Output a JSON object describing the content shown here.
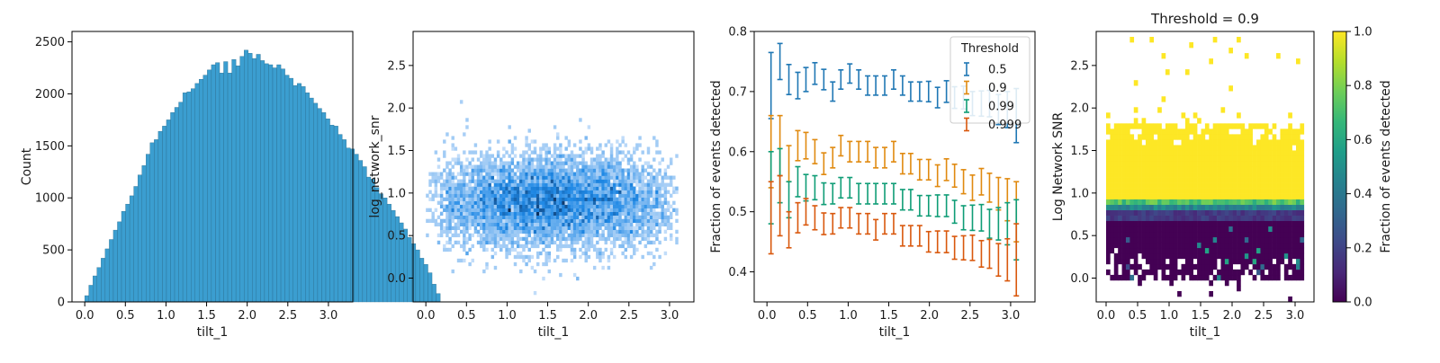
{
  "chart_data": [
    {
      "id": "hist",
      "type": "bar",
      "xlabel": "tilt_1",
      "ylabel": "Count",
      "xlim": [
        -0.157,
        3.3
      ],
      "ylim": [
        0,
        2600
      ],
      "xticks": [
        0.0,
        0.5,
        1.0,
        1.5,
        2.0,
        2.5,
        3.0
      ],
      "xtick_labels": [
        "0.0",
        "0.5",
        "1.0",
        "1.5",
        "2.0",
        "2.5",
        "3.0"
      ],
      "yticks": [
        0,
        500,
        1000,
        1500,
        2000,
        2500
      ],
      "ytick_labels": [
        "0",
        "500",
        "1000",
        "1500",
        "2000",
        "2500"
      ],
      "bin_width": 0.0503,
      "bin_start": 0.0,
      "values": [
        60,
        160,
        250,
        330,
        420,
        510,
        600,
        690,
        770,
        870,
        940,
        1020,
        1110,
        1220,
        1310,
        1420,
        1530,
        1560,
        1640,
        1690,
        1750,
        1820,
        1870,
        1920,
        2010,
        2020,
        2050,
        2100,
        2140,
        2180,
        2230,
        2280,
        2300,
        2200,
        2310,
        2200,
        2330,
        2270,
        2360,
        2420,
        2390,
        2340,
        2380,
        2320,
        2290,
        2280,
        2250,
        2280,
        2240,
        2180,
        2150,
        2080,
        2100,
        2070,
        2010,
        1960,
        1910,
        1860,
        1820,
        1760,
        1700,
        1690,
        1610,
        1560,
        1480,
        1470,
        1420,
        1360,
        1300,
        1200,
        1180,
        1100,
        1040,
        1000,
        940,
        880,
        820,
        760,
        700,
        620,
        560,
        500,
        420,
        360,
        280,
        170,
        80
      ],
      "color": "#3b9ed0"
    },
    {
      "id": "density",
      "type": "heatmap",
      "xlabel": "tilt_1",
      "ylabel": "log_network_snr",
      "xlim": [
        -0.157,
        3.3
      ],
      "ylim": [
        -0.28,
        2.9
      ],
      "xticks": [
        0.0,
        0.5,
        1.0,
        1.5,
        2.0,
        2.5,
        3.0
      ],
      "xtick_labels": [
        "0.0",
        "0.5",
        "1.0",
        "1.5",
        "2.0",
        "2.5",
        "3.0"
      ],
      "yticks": [
        0.0,
        0.5,
        1.0,
        1.5,
        2.0,
        2.5
      ],
      "ytick_labels": [
        "0.0",
        "0.5",
        "1.0",
        "1.5",
        "2.0",
        "2.5"
      ],
      "center": [
        1.6,
        0.9
      ],
      "color_dense": "#0b2a55",
      "color_mid": "#1e88e5",
      "color_light": "#cfe3fb"
    },
    {
      "id": "fraction",
      "type": "line",
      "xlabel": "tilt_1",
      "ylabel": "Fraction of events detected",
      "xlim": [
        -0.157,
        3.3
      ],
      "ylim": [
        0.35,
        0.8
      ],
      "xticks": [
        0.0,
        0.5,
        1.0,
        1.5,
        2.0,
        2.5,
        3.0
      ],
      "xtick_labels": [
        "0.0",
        "0.5",
        "1.0",
        "1.5",
        "2.0",
        "2.5",
        "3.0"
      ],
      "yticks": [
        0.4,
        0.5,
        0.6,
        0.7,
        0.8
      ],
      "ytick_labels": [
        "0.4",
        "0.5",
        "0.6",
        "0.7",
        "0.8"
      ],
      "legend_title": "Threshold",
      "legend_position": "top-right",
      "x": [
        0.05,
        0.16,
        0.27,
        0.38,
        0.48,
        0.59,
        0.7,
        0.81,
        0.91,
        1.02,
        1.13,
        1.24,
        1.34,
        1.45,
        1.56,
        1.67,
        1.77,
        1.88,
        1.99,
        2.1,
        2.21,
        2.31,
        2.42,
        2.53,
        2.64,
        2.74,
        2.85,
        2.96,
        3.07
      ],
      "series": [
        {
          "name": "0.5",
          "color": "#1f77b4",
          "values": [
            0.71,
            0.75,
            0.72,
            0.71,
            0.72,
            0.73,
            0.72,
            0.7,
            0.72,
            0.73,
            0.72,
            0.71,
            0.71,
            0.71,
            0.72,
            0.71,
            0.7,
            0.7,
            0.7,
            0.69,
            0.7,
            0.69,
            0.69,
            0.68,
            0.68,
            0.68,
            0.67,
            0.67,
            0.66
          ],
          "errors": [
            0.055,
            0.03,
            0.025,
            0.022,
            0.02,
            0.018,
            0.017,
            0.016,
            0.016,
            0.016,
            0.016,
            0.016,
            0.016,
            0.016,
            0.016,
            0.016,
            0.016,
            0.016,
            0.017,
            0.017,
            0.018,
            0.018,
            0.019,
            0.02,
            0.021,
            0.022,
            0.025,
            0.03,
            0.045
          ]
        },
        {
          "name": "0.9",
          "color": "#e08a10",
          "values": [
            0.6,
            0.61,
            0.58,
            0.61,
            0.61,
            0.6,
            0.58,
            0.59,
            0.61,
            0.6,
            0.6,
            0.6,
            0.59,
            0.59,
            0.6,
            0.58,
            0.58,
            0.57,
            0.57,
            0.56,
            0.57,
            0.56,
            0.55,
            0.54,
            0.55,
            0.54,
            0.53,
            0.52,
            0.5
          ],
          "errors": [
            0.06,
            0.05,
            0.03,
            0.025,
            0.022,
            0.02,
            0.018,
            0.017,
            0.017,
            0.017,
            0.017,
            0.017,
            0.017,
            0.017,
            0.017,
            0.017,
            0.017,
            0.017,
            0.017,
            0.018,
            0.018,
            0.019,
            0.02,
            0.021,
            0.022,
            0.024,
            0.027,
            0.035,
            0.05
          ]
        },
        {
          "name": "0.99",
          "color": "#0f9d76",
          "values": [
            0.54,
            0.56,
            0.52,
            0.55,
            0.54,
            0.54,
            0.53,
            0.53,
            0.54,
            0.54,
            0.53,
            0.53,
            0.53,
            0.53,
            0.53,
            0.52,
            0.52,
            0.51,
            0.51,
            0.51,
            0.51,
            0.5,
            0.49,
            0.49,
            0.49,
            0.48,
            0.48,
            0.48,
            0.47
          ],
          "errors": [
            0.06,
            0.045,
            0.03,
            0.025,
            0.022,
            0.02,
            0.018,
            0.017,
            0.017,
            0.017,
            0.017,
            0.017,
            0.017,
            0.017,
            0.017,
            0.017,
            0.017,
            0.017,
            0.017,
            0.018,
            0.018,
            0.019,
            0.02,
            0.021,
            0.022,
            0.024,
            0.027,
            0.035,
            0.05
          ]
        },
        {
          "name": "0.999",
          "color": "#d9580d",
          "values": [
            0.49,
            0.51,
            0.47,
            0.49,
            0.5,
            0.49,
            0.48,
            0.48,
            0.49,
            0.49,
            0.48,
            0.48,
            0.47,
            0.48,
            0.48,
            0.46,
            0.46,
            0.46,
            0.45,
            0.45,
            0.45,
            0.44,
            0.44,
            0.44,
            0.43,
            0.43,
            0.42,
            0.42,
            0.42
          ],
          "errors": [
            0.06,
            0.05,
            0.03,
            0.025,
            0.022,
            0.02,
            0.018,
            0.017,
            0.017,
            0.017,
            0.017,
            0.017,
            0.017,
            0.017,
            0.017,
            0.017,
            0.017,
            0.017,
            0.017,
            0.018,
            0.018,
            0.019,
            0.02,
            0.021,
            0.022,
            0.024,
            0.027,
            0.035,
            0.06
          ]
        }
      ]
    },
    {
      "id": "threshold_map",
      "type": "heatmap",
      "title": "Threshold = 0.9",
      "xlabel": "tilt_1",
      "ylabel": "Log Network SNR",
      "xlim": [
        -0.157,
        3.3
      ],
      "ylim": [
        -0.28,
        2.9
      ],
      "xticks": [
        0.0,
        0.5,
        1.0,
        1.5,
        2.0,
        2.5,
        3.0
      ],
      "xtick_labels": [
        "0.0",
        "0.5",
        "1.0",
        "1.5",
        "2.0",
        "2.5",
        "3.0"
      ],
      "yticks": [
        0.0,
        0.5,
        1.0,
        1.5,
        2.0,
        2.5
      ],
      "ytick_labels": [
        "0.0",
        "0.5",
        "1.0",
        "1.5",
        "2.0",
        "2.5"
      ],
      "colorbar_label": "Fraction of events detected",
      "colorbar_ticks": [
        0.0,
        0.2,
        0.4,
        0.6,
        0.8,
        1.0
      ],
      "colorbar_tick_labels": [
        "0.0",
        "0.2",
        "0.4",
        "0.6",
        "0.8",
        "1.0"
      ],
      "colormap": "viridis"
    }
  ]
}
